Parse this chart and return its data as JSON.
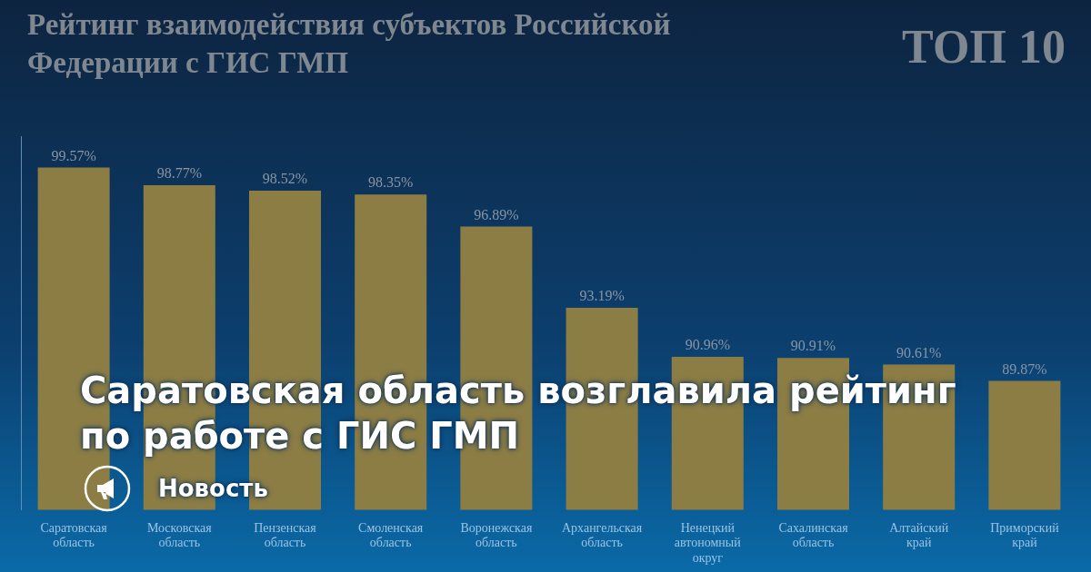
{
  "chart_data": {
    "type": "bar",
    "title": "Рейтинг взаимодействия субъектов Российской Федерации с ГИС ГМП",
    "subtitle": "ТОП 10",
    "categories": [
      "Саратовская область",
      "Московская область",
      "Пензенская область",
      "Смоленская область",
      "Воронежская область",
      "Архангельская область",
      "Ненецкий автономный округ",
      "Сахалинская область",
      "Алтайский край",
      "Приморский край"
    ],
    "values": [
      99.57,
      98.77,
      98.52,
      98.35,
      96.89,
      93.19,
      90.96,
      90.91,
      90.61,
      89.87
    ],
    "value_labels": [
      "99.57%",
      "98.77%",
      "98.52%",
      "98.35%",
      "96.89%",
      "93.19%",
      "90.96%",
      "90.91%",
      "90.61%",
      "89.87%"
    ],
    "color": "#8c7d45",
    "ylim": [
      84,
      101
    ],
    "tick_labels": "x",
    "annotations": [
      "Саратовская область возглавила рейтинг по работе с ГИС ГМП",
      "Новость"
    ]
  }
}
